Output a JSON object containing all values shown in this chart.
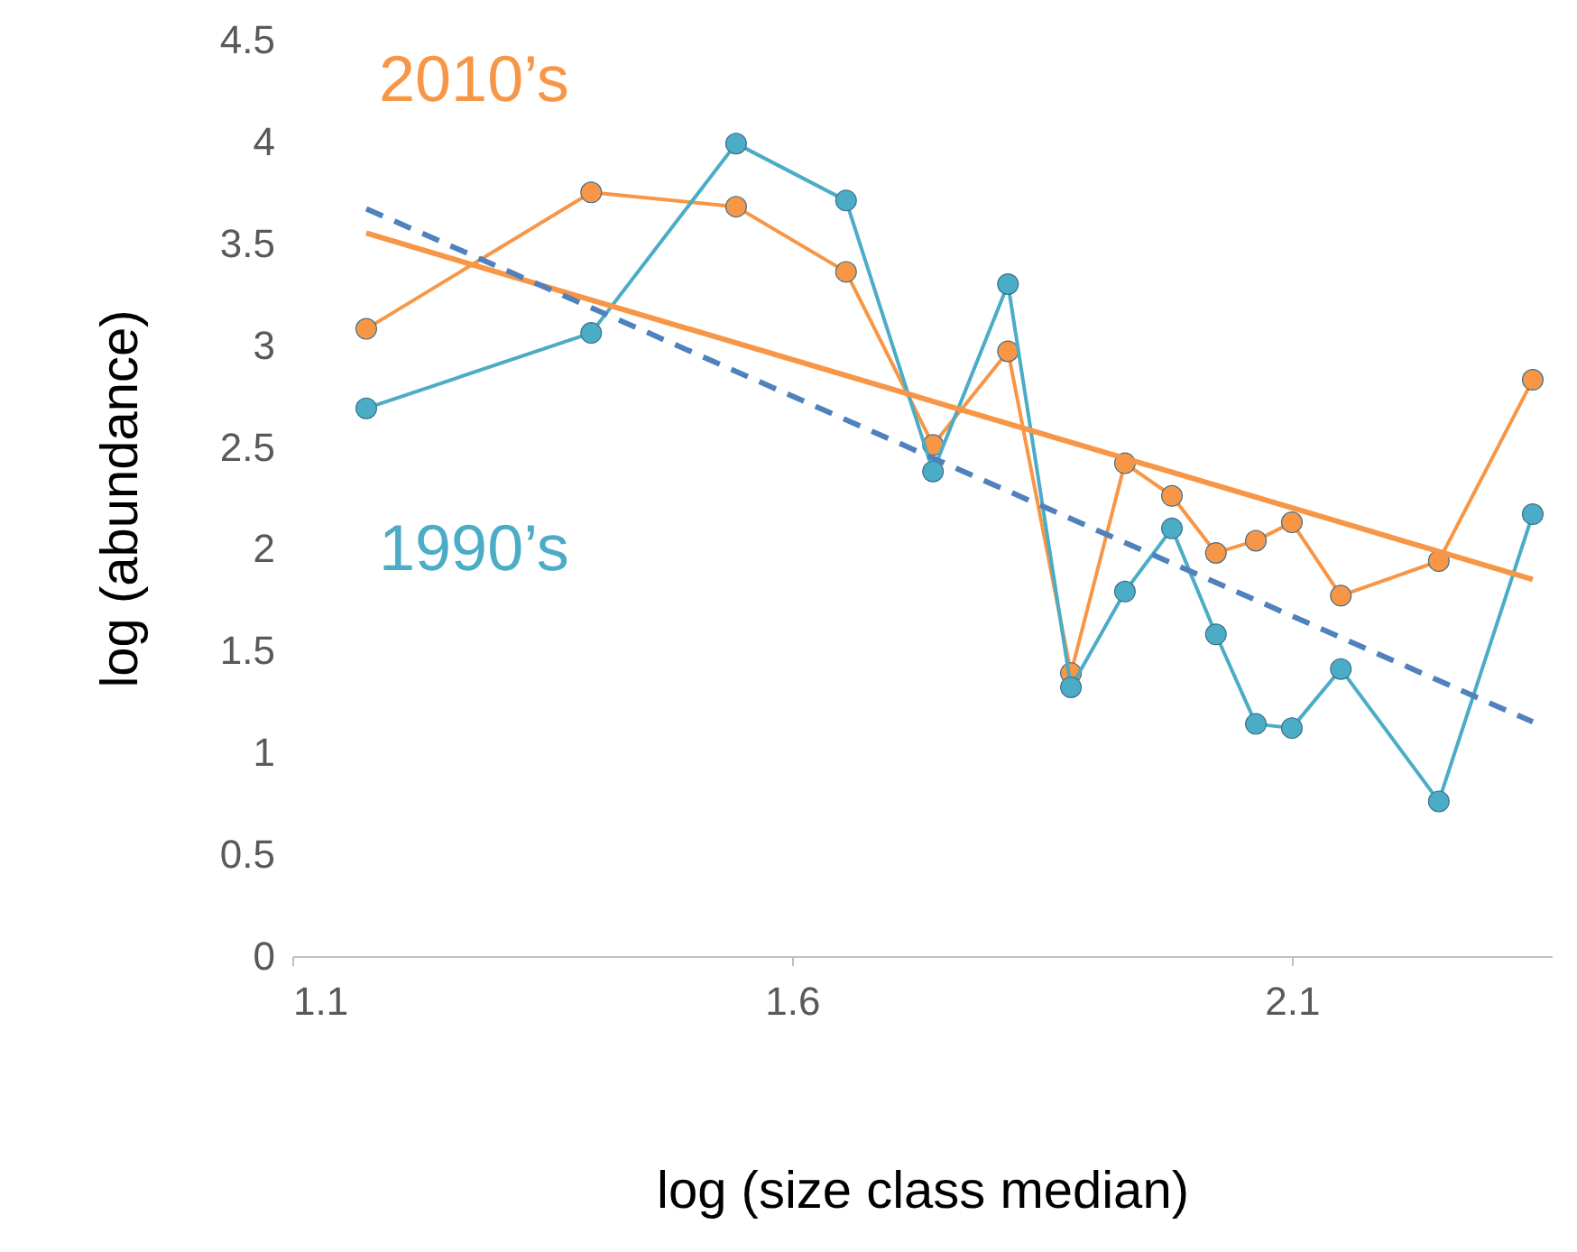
{
  "chart_data": {
    "type": "line",
    "xlabel": "log (size class median)",
    "ylabel": "log (abundance)",
    "xlim": [
      1.1,
      2.36
    ],
    "xticks": [
      1.1,
      1.6,
      2.1
    ],
    "ylim": [
      0,
      4.5
    ],
    "yticks": [
      0,
      0.5,
      1,
      1.5,
      2,
      2.5,
      3,
      3.5,
      4,
      4.5
    ],
    "grid": false,
    "series": [
      {
        "name": "2010’s",
        "color": "#f79646",
        "marker": "circle",
        "x": [
          1.174,
          1.399,
          1.544,
          1.654,
          1.741,
          1.816,
          1.879,
          1.933,
          1.98,
          2.024,
          2.064,
          2.1,
          2.149,
          2.247,
          2.341
        ],
        "values": [
          3.08,
          3.75,
          3.68,
          3.36,
          2.51,
          2.97,
          1.39,
          2.42,
          2.26,
          1.98,
          2.04,
          2.13,
          1.77,
          1.94,
          2.83
        ]
      },
      {
        "name": "1990’s",
        "color": "#4bacc6",
        "marker": "circle",
        "x": [
          1.174,
          1.399,
          1.544,
          1.654,
          1.741,
          1.816,
          1.879,
          1.933,
          1.98,
          2.024,
          2.064,
          2.1,
          2.149,
          2.247,
          2.341
        ],
        "values": [
          2.69,
          3.06,
          3.99,
          3.71,
          2.38,
          3.3,
          1.32,
          1.79,
          2.1,
          1.58,
          1.14,
          1.12,
          1.41,
          0.76,
          2.17
        ]
      },
      {
        "color": "#f79646",
        "line_style": "solid",
        "x": [
          1.174,
          2.341
        ],
        "values": [
          3.55,
          1.85
        ]
      },
      {
        "color": "#4f81bd",
        "line_style": "dashed",
        "x": [
          1.174,
          2.341
        ],
        "values": [
          3.67,
          1.15
        ]
      }
    ]
  }
}
